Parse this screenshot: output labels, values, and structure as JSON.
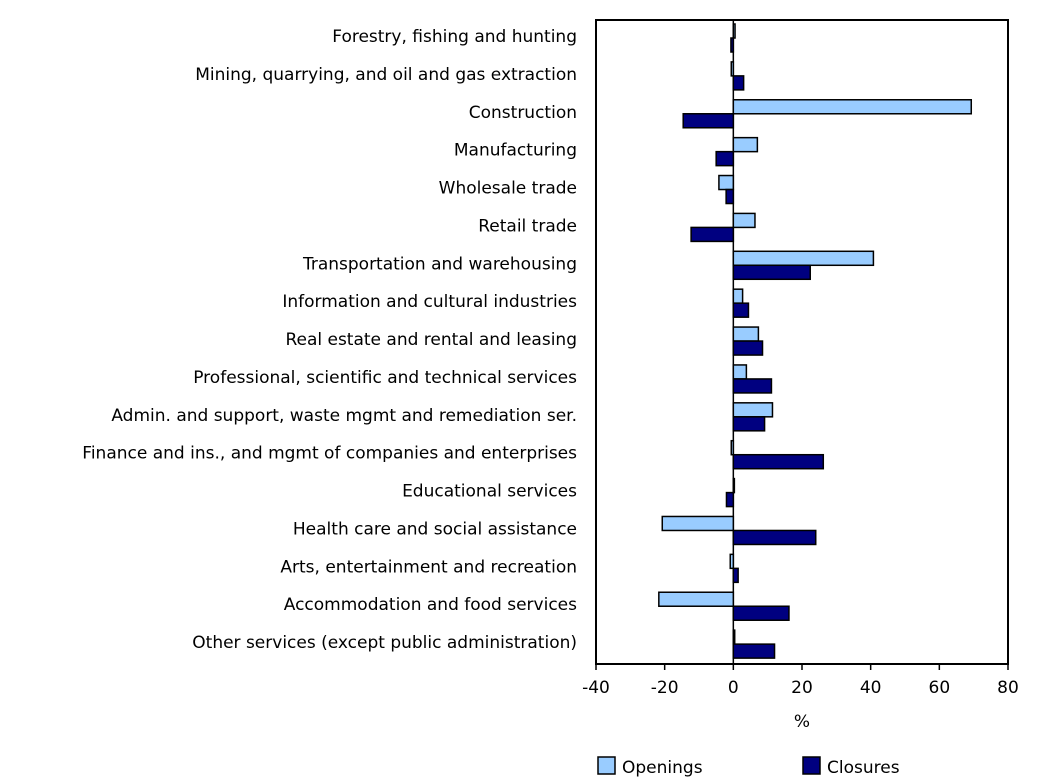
{
  "chart_data": {
    "type": "bar",
    "orientation": "horizontal",
    "categories": [
      "Forestry, fishing and hunting",
      "Mining, quarrying, and oil and gas extraction",
      "Construction",
      "Manufacturing",
      "Wholesale trade",
      "Retail trade",
      "Transportation and warehousing",
      "Information and cultural industries",
      "Real estate and rental and leasing",
      "Professional, scientific and technical services",
      "Admin. and support, waste mgmt and remediation ser.",
      "Finance and ins., and mgmt of companies and enterprises",
      "Educational services",
      "Health care and social assistance",
      "Arts, entertainment and recreation",
      "Accommodation and food services",
      "Other services (except public administration)"
    ],
    "series": [
      {
        "name": "Openings",
        "color": "#99ccff",
        "values": [
          0.5,
          -0.6,
          69.3,
          7.0,
          -4.2,
          6.3,
          40.8,
          2.7,
          7.3,
          3.8,
          11.4,
          -0.6,
          0.3,
          -20.7,
          -0.9,
          -21.7,
          0.4
        ]
      },
      {
        "name": "Closures",
        "color": "#000080",
        "values": [
          -0.7,
          3.0,
          -14.6,
          -5.0,
          -2.1,
          -12.3,
          22.4,
          4.4,
          8.5,
          11.1,
          9.1,
          26.2,
          -2.0,
          24.0,
          1.4,
          16.2,
          12.0
        ]
      }
    ],
    "xlabel": "%",
    "xlim": [
      -40,
      80
    ],
    "xticks": [
      "-40",
      "-20",
      "0",
      "20",
      "40",
      "60",
      "80"
    ],
    "grid": false,
    "legend": "bottom"
  }
}
